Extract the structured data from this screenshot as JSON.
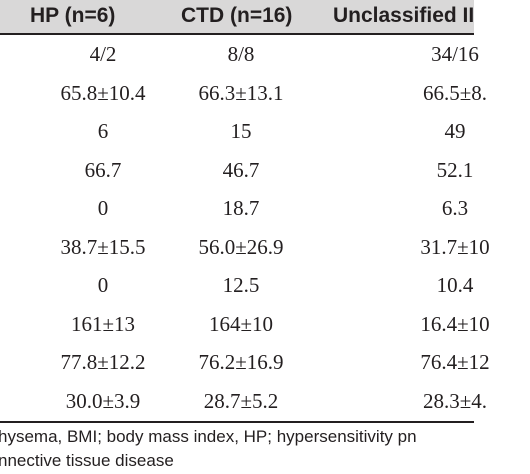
{
  "table": {
    "columns": [
      "HP (n=6)",
      "CTD (n=16)",
      "Unclassified II"
    ],
    "rows": [
      [
        "4/2",
        "8/8",
        "34/16"
      ],
      [
        "65.8±10.4",
        "66.3±13.1",
        "66.5±8."
      ],
      [
        "6",
        "15",
        "49"
      ],
      [
        "66.7",
        "46.7",
        "52.1"
      ],
      [
        "0",
        "18.7",
        "6.3"
      ],
      [
        "38.7±15.5",
        "56.0±26.9",
        "31.7±10"
      ],
      [
        "0",
        "12.5",
        "10.4"
      ],
      [
        "161±13",
        "164±10",
        "16.4±10"
      ],
      [
        "77.8±12.2",
        "76.2±16.9",
        "76.4±12"
      ],
      [
        "30.0±3.9",
        "28.7±5.2",
        "28.3±4."
      ]
    ]
  },
  "footnote": {
    "line1": "hysema, BMI; body mass index, HP; hypersensitivity pn",
    "line2": "nnective tissue disease"
  }
}
